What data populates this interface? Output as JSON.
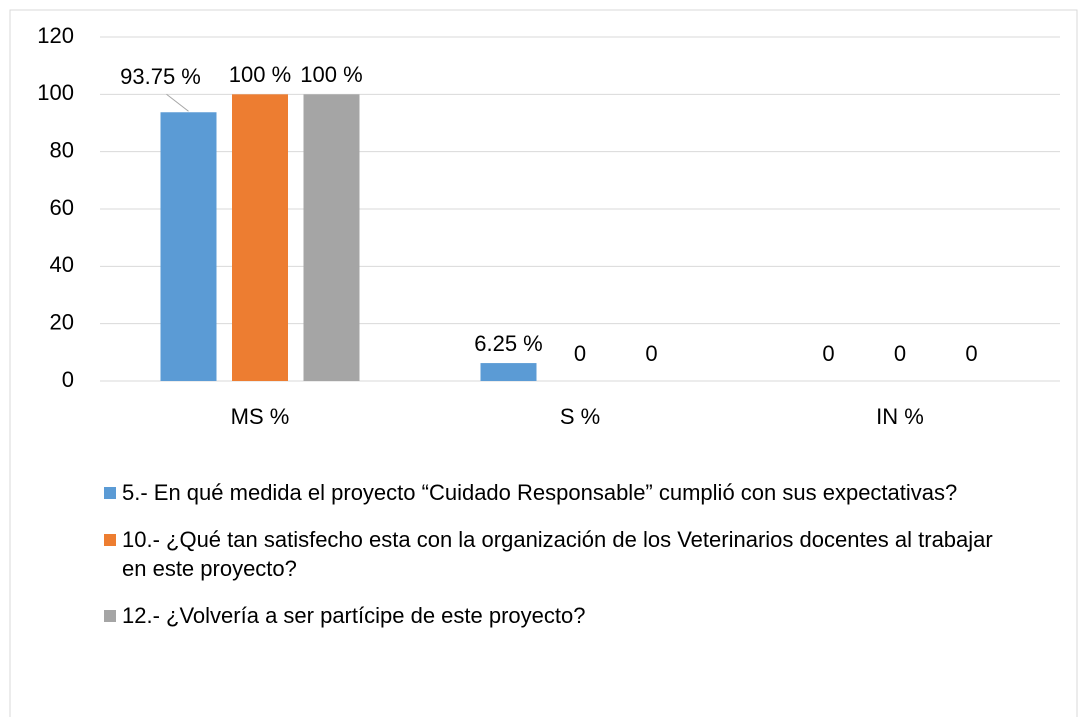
{
  "chart_data": {
    "type": "bar",
    "categories": [
      "MS %",
      "S %",
      "IN %"
    ],
    "series": [
      {
        "name": "5.- En qué medida el proyecto “Cuidado Responsable” cumplió con sus expectativas?",
        "color": "#5b9bd5",
        "values": [
          93.75,
          6.25,
          0
        ],
        "value_labels": [
          "93.75 %",
          "6.25 %",
          "0"
        ]
      },
      {
        "name": "10.- ¿Qué tan satisfecho esta con la organización de los Veterinarios docentes al trabajar en este proyecto?",
        "color": "#ed7d31",
        "values": [
          100,
          0,
          0
        ],
        "value_labels": [
          "100 %",
          "0",
          "0"
        ]
      },
      {
        "name": "12.- ¿Volvería a ser partícipe de este proyecto?",
        "color": "#a5a5a5",
        "values": [
          100,
          0,
          0
        ],
        "value_labels": [
          "100 %",
          "0",
          "0"
        ]
      }
    ],
    "ylim": [
      0,
      120
    ],
    "yticks": [
      0,
      20,
      40,
      60,
      80,
      100,
      120
    ],
    "grid": true,
    "legend": "bottom"
  }
}
